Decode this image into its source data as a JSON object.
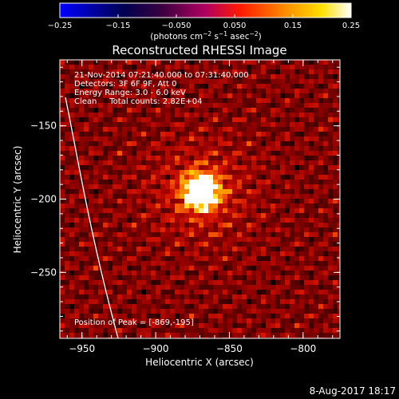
{
  "chart_data": {
    "type": "heatmap",
    "title": "Reconstructed RHESSI Image",
    "xlabel": "Heliocentric X (arcsec)",
    "ylabel": "Heliocentric Y (arcsec)",
    "xlim": [
      -965,
      -775
    ],
    "ylim": [
      -295,
      -105
    ],
    "x_ticks": [
      -950,
      -900,
      -850,
      -800
    ],
    "y_ticks": [
      -150,
      -200,
      -250
    ],
    "x_tick_labels": [
      "−950",
      "−900",
      "−850",
      "−800"
    ],
    "y_tick_labels": [
      "−150",
      "−200",
      "−250"
    ],
    "colorbar": {
      "min": -0.25,
      "max": 0.25,
      "ticks": [
        -0.25,
        -0.15,
        -0.05,
        0.05,
        0.15,
        0.25
      ],
      "tick_labels": [
        "−0.25",
        "−0.15",
        "−0.050",
        "0.050",
        "0.15",
        "0.25"
      ],
      "unit_prefix": "(photons cm",
      "unit_exp1": "−2",
      "unit_mid": " s",
      "unit_exp2": "−1",
      "unit_mid2": " asec",
      "unit_exp3": "−2",
      "unit_suffix": ")",
      "colormap": [
        "#0000ff",
        "#000000",
        "#800080",
        "#ff0000",
        "#ffa500",
        "#ffff00",
        "#ffffff"
      ]
    },
    "annotations": [
      "21-Nov-2014 07:21:40.000 to 07:31:40.000",
      "Detectors: 3F 6F 9F, Att 0",
      "Energy Range: 3.0 - 6.0 keV",
      "Clean     Total counts: 2.82E+04"
    ],
    "peak_label": "Position of Peak = [-869,-195]",
    "peak": {
      "x": -869,
      "y": -195
    },
    "grid": false
  },
  "footer_date": "8-Aug-2017 18:17"
}
